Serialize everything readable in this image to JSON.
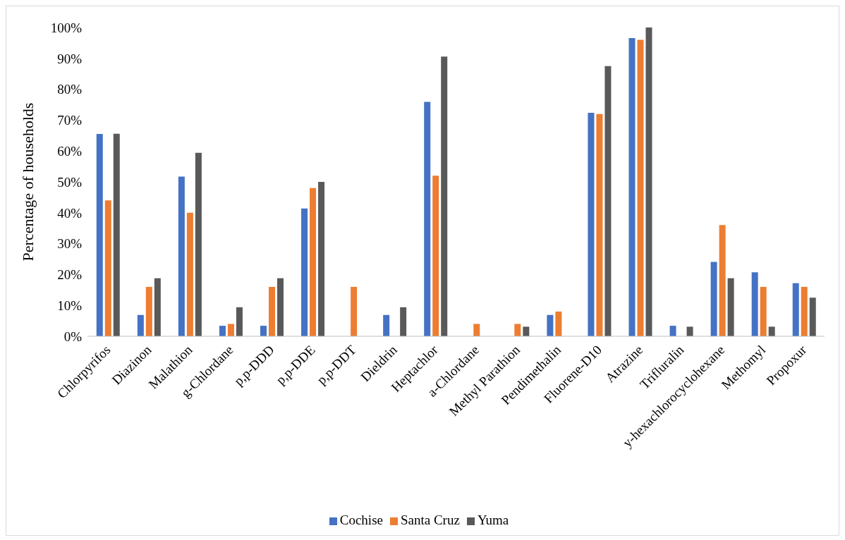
{
  "chart_data": {
    "type": "bar",
    "ylabel": "Percentage of households",
    "categories": [
      "Chlorpyrifos",
      "Diazinon",
      "Malathion",
      "g-Chlordane",
      "p,p-DDD",
      "p,p-DDE",
      "p,p-DDT",
      "Dieldrin",
      "Heptachlor",
      "a-Chlordane",
      "Methyl Parathion",
      "Pendimethalin",
      "Fluorene-D10",
      "Atrazine",
      "Trifluralin",
      "y-hexachlorocyclohexane",
      "Methomyl",
      "Propoxur"
    ],
    "series": [
      {
        "name": "Cochise",
        "color": "#4472c4",
        "values": [
          65.5,
          6.9,
          51.7,
          3.4,
          3.4,
          41.4,
          0,
          6.9,
          75.9,
          0,
          0,
          6.9,
          72.4,
          96.6,
          3.4,
          24.1,
          20.7,
          17.2
        ]
      },
      {
        "name": "Santa Cruz",
        "color": "#ed7d31",
        "values": [
          44,
          16,
          40,
          4,
          16,
          48,
          16,
          0,
          52,
          4,
          4,
          8,
          72,
          96,
          0,
          36,
          16,
          16
        ]
      },
      {
        "name": "Yuma",
        "color": "#595959",
        "values": [
          65.6,
          18.8,
          59.4,
          9.4,
          18.8,
          50,
          0,
          9.4,
          90.6,
          0,
          3.1,
          0,
          87.5,
          100,
          3.1,
          18.8,
          3.1,
          12.5
        ]
      }
    ],
    "ylim": [
      0,
      100
    ],
    "yticks": [
      {
        "value": 0,
        "label": "0%"
      },
      {
        "value": 10,
        "label": "10%"
      },
      {
        "value": 20,
        "label": "20%"
      },
      {
        "value": 30,
        "label": "30%"
      },
      {
        "value": 40,
        "label": "40%"
      },
      {
        "value": 50,
        "label": "50%"
      },
      {
        "value": 60,
        "label": "60%"
      },
      {
        "value": 70,
        "label": "70%"
      },
      {
        "value": 80,
        "label": "80%"
      },
      {
        "value": 90,
        "label": "90%"
      },
      {
        "value": 100,
        "label": "100%"
      }
    ],
    "grid": false,
    "legend": "bottom"
  }
}
